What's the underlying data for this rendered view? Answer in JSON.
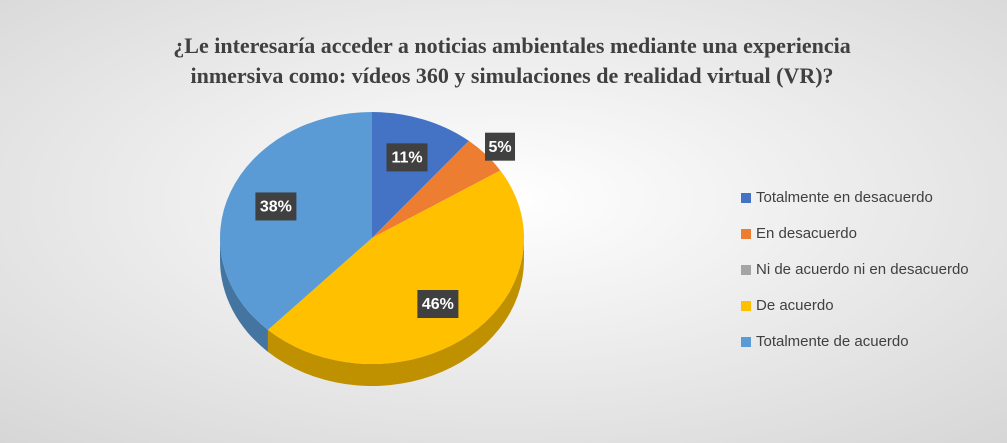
{
  "chart_data": {
    "type": "pie",
    "title": "¿Le interesaría acceder a noticias ambientales mediante una experiencia",
    "subtitle": "inmersiva como: vídeos 360 y simulaciones de realidad virtual (VR)?",
    "categories": [
      "Totalmente en desacuerdo",
      "En desacuerdo",
      "Ni de acuerdo ni en desacuerdo",
      "De acuerdo",
      "Totalmente de acuerdo"
    ],
    "values": [
      11,
      5,
      0,
      46,
      38
    ],
    "value_labels": [
      "11%",
      "5%",
      null,
      "46%",
      "38%"
    ],
    "colors": [
      "#4472c4",
      "#ed7d31",
      "#a5a5a5",
      "#ffc000",
      "#5b9bd5"
    ],
    "legend": "right"
  }
}
